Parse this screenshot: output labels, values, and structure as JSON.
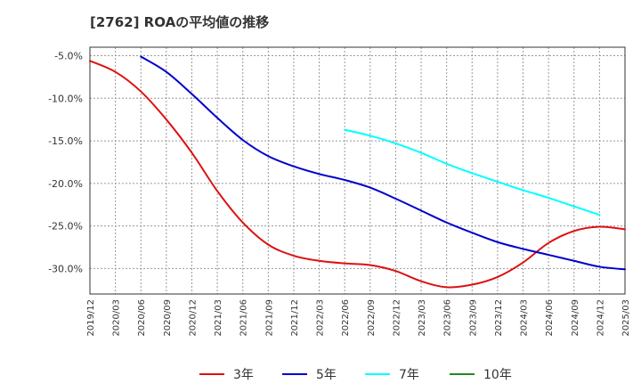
{
  "title": "[2762]  ROAの平均値の推移",
  "chart_data": {
    "type": "line",
    "title": "[2762]  ROAの平均値の推移",
    "xlabel": "",
    "ylabel": "",
    "ylim": [
      -33,
      -4
    ],
    "yticks": [
      -5,
      -10,
      -15,
      -20,
      -25,
      -30
    ],
    "ytick_labels": [
      "-5.0%",
      "-10.0%",
      "-15.0%",
      "-20.0%",
      "-25.0%",
      "-30.0%"
    ],
    "x_categories": [
      "2019/12",
      "2020/03",
      "2020/06",
      "2020/09",
      "2020/12",
      "2021/03",
      "2021/06",
      "2021/09",
      "2021/12",
      "2022/03",
      "2022/06",
      "2022/09",
      "2022/12",
      "2023/03",
      "2023/06",
      "2023/09",
      "2023/12",
      "2024/03",
      "2024/06",
      "2024/09",
      "2024/12",
      "2025/03"
    ],
    "grid": true,
    "legend_position": "bottom",
    "series": [
      {
        "name": "3年",
        "color": "#dd1111",
        "values": [
          -5.6,
          -6.9,
          -9.2,
          -12.5,
          -16.4,
          -20.9,
          -24.6,
          -27.2,
          -28.5,
          -29.1,
          -29.4,
          -29.6,
          -30.3,
          -31.5,
          -32.2,
          -31.9,
          -31.0,
          -29.3,
          -27.0,
          -25.6,
          -25.1,
          -25.4
        ]
      },
      {
        "name": "5年",
        "color": "#0000cc",
        "values": [
          null,
          null,
          -5.1,
          -6.9,
          -9.5,
          -12.3,
          -14.9,
          -16.8,
          -18.0,
          -18.9,
          -19.6,
          -20.5,
          -21.8,
          -23.2,
          -24.6,
          -25.8,
          -26.9,
          -27.7,
          -28.4,
          -29.1,
          -29.8,
          -30.1
        ]
      },
      {
        "name": "7年",
        "color": "#00ffff",
        "values": [
          null,
          null,
          null,
          null,
          null,
          null,
          null,
          null,
          null,
          null,
          -13.7,
          -14.4,
          -15.3,
          -16.4,
          -17.7,
          -18.8,
          -19.8,
          -20.8,
          -21.7,
          -22.7,
          -23.7,
          null
        ]
      },
      {
        "name": "10年",
        "color": "#228822",
        "values": []
      }
    ]
  }
}
